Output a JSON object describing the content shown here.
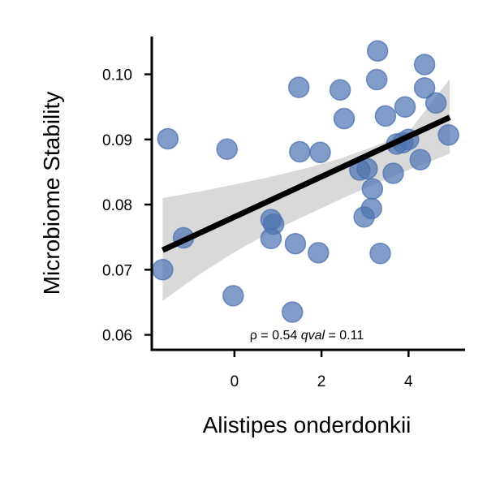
{
  "chart_data": {
    "type": "scatter",
    "xlabel": "Alistipes onderdonkii",
    "ylabel": "Microbiome Stability",
    "xlim": [
      -1.9,
      5.3
    ],
    "ylim": [
      0.0577,
      0.1058
    ],
    "x_ticks": [
      0,
      2,
      4
    ],
    "y_ticks": [
      0.06,
      0.07,
      0.08,
      0.09,
      0.1
    ],
    "x_tick_labels": [
      "0",
      "2",
      "4"
    ],
    "y_tick_labels": [
      "0.06",
      "0.07",
      "0.08",
      "0.09",
      "0.10"
    ],
    "grid": false,
    "annotation": {
      "rho_symbol": "ρ",
      "rho_text": " = 0.54 ",
      "qval_symbol": "qval",
      "qval_text": " = 0.11"
    },
    "colors": {
      "points": "#4c72b0",
      "fit_line": "#000000",
      "confidence_band": "#d9d9d9"
    },
    "fit": {
      "x": [
        -1.65,
        4.95
      ],
      "y": [
        0.073,
        0.0934
      ]
    },
    "confidence_band": {
      "x": [
        -1.65,
        -0.8,
        0.0,
        0.8,
        1.6,
        2.4,
        3.2,
        4.0,
        4.95
      ],
      "lower": [
        0.0652,
        0.0693,
        0.0727,
        0.0757,
        0.0782,
        0.0807,
        0.0831,
        0.0853,
        0.0878
      ],
      "upper": [
        0.081,
        0.082,
        0.0831,
        0.0842,
        0.0855,
        0.087,
        0.0889,
        0.0911,
        0.0993
      ]
    },
    "points": [
      {
        "x": -1.65,
        "y": 0.07
      },
      {
        "x": -1.53,
        "y": 0.0901
      },
      {
        "x": -1.17,
        "y": 0.0749
      },
      {
        "x": -0.17,
        "y": 0.0885
      },
      {
        "x": -0.03,
        "y": 0.066
      },
      {
        "x": 0.84,
        "y": 0.0748
      },
      {
        "x": 0.84,
        "y": 0.0777
      },
      {
        "x": 0.9,
        "y": 0.077
      },
      {
        "x": 1.33,
        "y": 0.0635
      },
      {
        "x": 1.4,
        "y": 0.074
      },
      {
        "x": 1.48,
        "y": 0.098
      },
      {
        "x": 1.5,
        "y": 0.0881
      },
      {
        "x": 1.93,
        "y": 0.0726
      },
      {
        "x": 1.97,
        "y": 0.088
      },
      {
        "x": 2.43,
        "y": 0.0976
      },
      {
        "x": 2.52,
        "y": 0.0932
      },
      {
        "x": 2.88,
        "y": 0.0853
      },
      {
        "x": 2.98,
        "y": 0.0781
      },
      {
        "x": 3.05,
        "y": 0.0855
      },
      {
        "x": 3.15,
        "y": 0.0794
      },
      {
        "x": 3.17,
        "y": 0.0824
      },
      {
        "x": 3.27,
        "y": 0.0992
      },
      {
        "x": 3.29,
        "y": 0.1036
      },
      {
        "x": 3.35,
        "y": 0.0725
      },
      {
        "x": 3.47,
        "y": 0.0936
      },
      {
        "x": 3.65,
        "y": 0.0848
      },
      {
        "x": 3.73,
        "y": 0.0893
      },
      {
        "x": 3.87,
        "y": 0.0895
      },
      {
        "x": 3.92,
        "y": 0.095
      },
      {
        "x": 4.0,
        "y": 0.09
      },
      {
        "x": 4.27,
        "y": 0.0869
      },
      {
        "x": 4.37,
        "y": 0.0979
      },
      {
        "x": 4.37,
        "y": 0.1015
      },
      {
        "x": 4.63,
        "y": 0.0956
      },
      {
        "x": 4.92,
        "y": 0.0907
      }
    ]
  }
}
